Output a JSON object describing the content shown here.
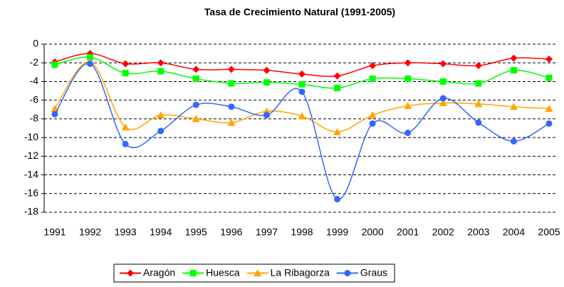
{
  "chart_data": {
    "type": "line",
    "title": "Tasa de Crecimiento Natural (1991-2005)",
    "categories": [
      "1991",
      "1992",
      "1993",
      "1994",
      "1995",
      "1996",
      "1997",
      "1998",
      "1999",
      "2000",
      "2001",
      "2002",
      "2003",
      "2004",
      "2005"
    ],
    "series": [
      {
        "name": "Aragón",
        "color": "#ff0000",
        "marker": "diamond",
        "values": [
          -1.9,
          -1.0,
          -2.1,
          -2.0,
          -2.7,
          -2.7,
          -2.8,
          -3.2,
          -3.4,
          -2.3,
          -2.0,
          -2.1,
          -2.3,
          -1.5,
          -1.6
        ]
      },
      {
        "name": "Huesca",
        "color": "#00ff00",
        "marker": "square",
        "values": [
          -2.2,
          -1.4,
          -3.1,
          -2.9,
          -3.7,
          -4.2,
          -4.1,
          -4.3,
          -4.7,
          -3.7,
          -3.7,
          -4.0,
          -4.2,
          -2.8,
          -3.6
        ]
      },
      {
        "name": "La Ribagorza",
        "color": "#ffa500",
        "marker": "triangle",
        "values": [
          -6.9,
          -1.9,
          -8.9,
          -7.6,
          -8.0,
          -8.4,
          -7.2,
          -7.7,
          -9.4,
          -7.6,
          -6.6,
          -6.3,
          -6.4,
          -6.7,
          -6.9
        ]
      },
      {
        "name": "Graus",
        "color": "#3366ff",
        "marker": "circle",
        "values": [
          -7.5,
          -2.1,
          -10.7,
          -9.3,
          -6.5,
          -6.7,
          -7.6,
          -5.1,
          -16.6,
          -8.5,
          -9.5,
          -5.8,
          -8.4,
          -10.4,
          -8.5
        ]
      }
    ],
    "ylim": [
      -18,
      0
    ],
    "yticks": [
      0,
      -2,
      -4,
      -6,
      -8,
      -10,
      -12,
      -14,
      -16,
      -18
    ],
    "grid": true,
    "smooth": true,
    "legend": "bottom"
  }
}
